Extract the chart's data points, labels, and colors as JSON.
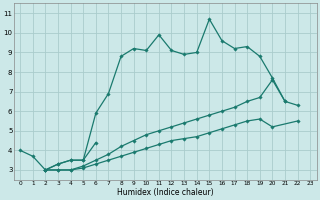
{
  "xlabel": "Humidex (Indice chaleur)",
  "bg_color": "#cce8e8",
  "grid_color": "#aacccc",
  "line_color": "#1a7a6e",
  "ylim": [
    2.5,
    11.5
  ],
  "xlim": [
    -0.5,
    23.5
  ],
  "yticks": [
    3,
    4,
    5,
    6,
    7,
    8,
    9,
    10,
    11
  ],
  "xticks": [
    0,
    1,
    2,
    3,
    4,
    5,
    6,
    7,
    8,
    9,
    10,
    11,
    12,
    13,
    14,
    15,
    16,
    17,
    18,
    19,
    20,
    21,
    22,
    23
  ],
  "series": [
    {
      "x": [
        0,
        1,
        2,
        3,
        4,
        5,
        6,
        7,
        8,
        9,
        10,
        11,
        12,
        13,
        14,
        15,
        16,
        17,
        18,
        19,
        20,
        21
      ],
      "y": [
        4.0,
        3.7,
        3.0,
        3.3,
        3.5,
        3.5,
        5.9,
        6.9,
        8.8,
        9.2,
        9.1,
        9.9,
        9.1,
        8.9,
        9.0,
        10.7,
        9.6,
        9.2,
        9.3,
        8.8,
        7.7,
        6.5
      ]
    },
    {
      "x": [
        2,
        3,
        4,
        5,
        6
      ],
      "y": [
        3.0,
        3.3,
        3.5,
        3.5,
        4.4
      ]
    },
    {
      "x": [
        2,
        3,
        4,
        5,
        6,
        7,
        8,
        9,
        10,
        11,
        12,
        13,
        14,
        15,
        16,
        17,
        18,
        19,
        20,
        21,
        22
      ],
      "y": [
        3.0,
        3.0,
        3.0,
        3.2,
        3.5,
        3.8,
        4.2,
        4.5,
        4.8,
        5.0,
        5.2,
        5.4,
        5.6,
        5.8,
        6.0,
        6.2,
        6.5,
        6.7,
        7.6,
        6.5,
        6.3
      ]
    },
    {
      "x": [
        2,
        3,
        4,
        5,
        6,
        7,
        8,
        9,
        10,
        11,
        12,
        13,
        14,
        15,
        16,
        17,
        18,
        19,
        20,
        22
      ],
      "y": [
        3.0,
        3.0,
        3.0,
        3.1,
        3.3,
        3.5,
        3.7,
        3.9,
        4.1,
        4.3,
        4.5,
        4.6,
        4.7,
        4.9,
        5.1,
        5.3,
        5.5,
        5.6,
        5.2,
        5.5
      ]
    }
  ]
}
